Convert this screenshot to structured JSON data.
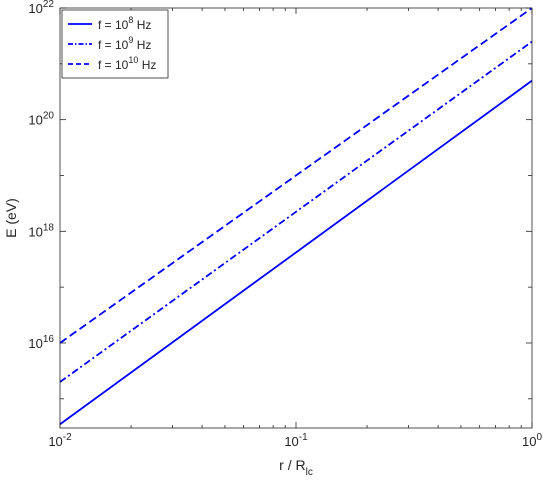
{
  "chart_data": {
    "type": "line",
    "scale": {
      "x": "log",
      "y": "log"
    },
    "xlim": [
      0.01,
      1
    ],
    "ylim": [
      300000000000000.0,
      1e+22
    ],
    "xlabel": {
      "main": "r / R",
      "sub": "lc"
    },
    "ylabel": "E (eV)",
    "xticks": [
      {
        "value": 0.01,
        "base": "10",
        "exp": "-2"
      },
      {
        "value": 0.1,
        "base": "10",
        "exp": "-1"
      },
      {
        "value": 1,
        "base": "10",
        "exp": "0"
      }
    ],
    "yticks": [
      {
        "value": 1e+16,
        "base": "10",
        "exp": "16"
      },
      {
        "value": 1e+18,
        "base": "10",
        "exp": "18"
      },
      {
        "value": 1e+20,
        "base": "10",
        "exp": "20"
      },
      {
        "value": 1e+22,
        "base": "10",
        "exp": "22"
      }
    ],
    "grid": false,
    "box": true,
    "legend_position": "top-left",
    "series": [
      {
        "name": "f = 10^8 Hz",
        "legend": {
          "pre": "f = 10",
          "exp": "8",
          "post": " Hz"
        },
        "style": "solid",
        "color": "#0000ff",
        "x": [
          0.01,
          1
        ],
        "y": [
          350000000000000.0,
          5e+20
        ]
      },
      {
        "name": "f = 10^9 Hz",
        "legend": {
          "pre": "f = 10",
          "exp": "9",
          "post": " Hz"
        },
        "style": "dashdot",
        "color": "#0000ff",
        "x": [
          0.01,
          1
        ],
        "y": [
          2000000000000000.0,
          2.5e+21
        ]
      },
      {
        "name": "f = 10^10 Hz",
        "legend": {
          "pre": "f = 10",
          "exp": "10",
          "post": " Hz"
        },
        "style": "dashed",
        "color": "#0000ff",
        "x": [
          0.01,
          1
        ],
        "y": [
          1e+16,
          1e+22
        ]
      }
    ]
  }
}
